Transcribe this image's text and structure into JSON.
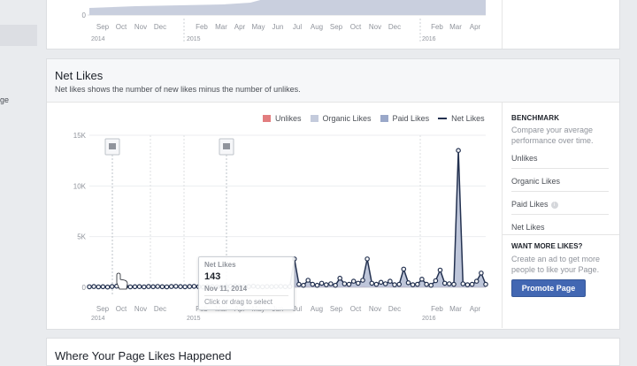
{
  "sidebar": {
    "partial_label": "ge"
  },
  "top_chart": {
    "y_zero": "0",
    "months": [
      "Sep",
      "Oct",
      "Nov",
      "Dec",
      "Feb",
      "Mar",
      "Apr",
      "May",
      "Jun",
      "Jul",
      "Aug",
      "Sep",
      "Oct",
      "Nov",
      "Dec",
      "Feb",
      "Mar",
      "Apr"
    ],
    "years": [
      "2014",
      "2015",
      "2016"
    ]
  },
  "net_likes": {
    "title": "Net Likes",
    "subtitle": "Net likes shows the number of new likes minus the number of unlikes.",
    "legend": [
      {
        "label": "Unlikes",
        "color": "#e27d7f"
      },
      {
        "label": "Organic Likes",
        "color": "#c4cbdc"
      },
      {
        "label": "Paid Likes",
        "color": "#9aa8c9"
      },
      {
        "label": "Net Likes",
        "color": "#233150"
      }
    ],
    "benchmark": {
      "title": "BENCHMARK",
      "desc": "Compare your average performance over time.",
      "items": [
        "Unlikes",
        "Organic Likes",
        "Paid Likes",
        "Net Likes"
      ],
      "info_glyph": "i"
    },
    "more_likes": {
      "title": "WANT MORE LIKES?",
      "desc": "Create an ad to get more people to like your Page.",
      "button": "Promote Page"
    },
    "tooltip": {
      "label": "Net Likes",
      "value": "143",
      "date": "Nov 11, 2014",
      "hint": "Click or drag to select"
    }
  },
  "bottom_card": {
    "title": "Where Your Page Likes Happened"
  },
  "chart_data": {
    "type": "area",
    "ylim": [
      0,
      15000
    ],
    "yticks": [
      "0",
      "5K",
      "10K",
      "15K"
    ],
    "x_labels": [
      "Sep",
      "Oct",
      "Nov",
      "Dec",
      "Feb",
      "Mar",
      "Apr",
      "May",
      "Jun",
      "Jul",
      "Aug",
      "Sep",
      "Oct",
      "Nov",
      "Dec",
      "Feb",
      "Mar",
      "Apr"
    ],
    "year_labels": [
      "2014",
      "2015",
      "2016"
    ],
    "series": [
      {
        "name": "Net Likes",
        "values": [
          50,
          80,
          40,
          60,
          30,
          80,
          110,
          143,
          90,
          40,
          60,
          70,
          40,
          80,
          60,
          90,
          60,
          40,
          80,
          100,
          70,
          50,
          80,
          100,
          60,
          30,
          80,
          60,
          40,
          50,
          80,
          100,
          120,
          90,
          60,
          80,
          110,
          60,
          50,
          80,
          60,
          90,
          100,
          60,
          80,
          2800,
          300,
          200,
          700,
          300,
          200,
          400,
          250,
          350,
          200,
          900,
          350,
          300,
          600,
          400,
          700,
          2800,
          400,
          300,
          500,
          350,
          600,
          250,
          300,
          1800,
          450,
          250,
          300,
          800,
          300,
          200,
          650,
          1700,
          400,
          350,
          300,
          13500,
          350,
          250,
          300,
          600,
          1400,
          300
        ]
      }
    ]
  }
}
